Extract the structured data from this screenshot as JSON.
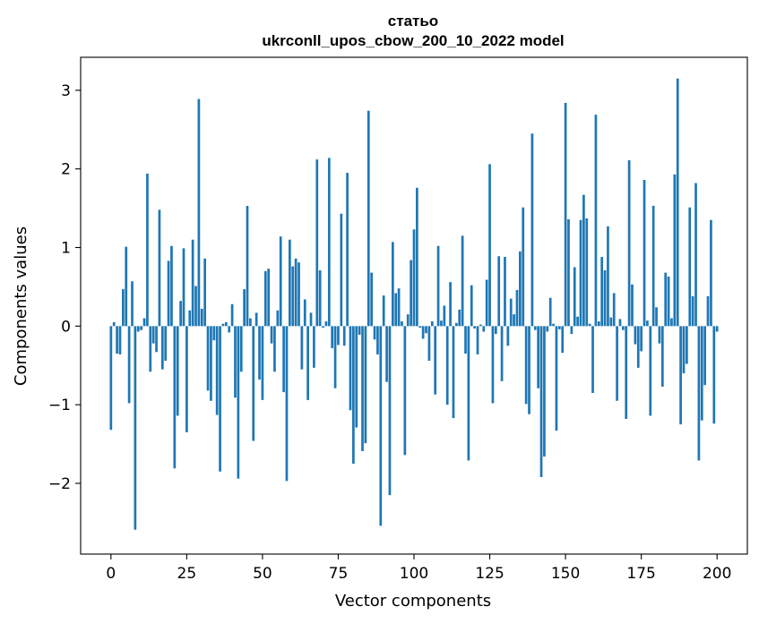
{
  "chart_data": {
    "type": "bar",
    "title": "статьо",
    "subtitle": "ukrconll_upos_cbow_200_10_2022 model",
    "xlabel": "Vector components",
    "ylabel": "Components values",
    "x_ticks": [
      "0",
      "25",
      "50",
      "75",
      "100",
      "125",
      "150",
      "175",
      "200"
    ],
    "y_ticks": [
      "−2",
      "−1",
      "0",
      "1",
      "2",
      "3"
    ],
    "xlim": [
      -10,
      210
    ],
    "ylim": [
      -2.9,
      3.42
    ],
    "grid": false,
    "bar_color": "#1f77b4",
    "values": [
      -1.32,
      0.05,
      -0.35,
      -0.36,
      0.47,
      1.01,
      -0.98,
      0.57,
      -2.59,
      -0.07,
      -0.05,
      0.1,
      1.94,
      -0.58,
      -0.22,
      -0.33,
      1.48,
      -0.55,
      -0.44,
      0.83,
      1.02,
      -1.81,
      -1.14,
      0.32,
      0.99,
      -1.35,
      0.2,
      1.1,
      0.51,
      2.89,
      0.22,
      0.86,
      -0.82,
      -0.95,
      -0.18,
      -1.13,
      -1.85,
      0.03,
      0.05,
      -0.08,
      0.28,
      -0.91,
      -1.94,
      -0.58,
      0.47,
      1.53,
      0.1,
      -1.46,
      0.17,
      -0.68,
      -0.94,
      0.7,
      0.73,
      -0.22,
      -0.58,
      0.2,
      1.14,
      -0.84,
      -1.97,
      1.1,
      0.76,
      0.86,
      0.81,
      -0.55,
      0.34,
      -0.94,
      0.17,
      -0.53,
      2.12,
      0.71,
      -0.02,
      0.06,
      2.14,
      -0.28,
      -0.79,
      -0.24,
      1.43,
      -0.25,
      1.95,
      -1.07,
      -1.75,
      -1.29,
      -0.11,
      -1.59,
      -1.49,
      2.74,
      0.68,
      -0.17,
      -0.36,
      -2.54,
      0.39,
      -0.71,
      -2.15,
      1.07,
      0.42,
      0.48,
      0.06,
      -1.64,
      0.15,
      0.84,
      1.23,
      1.76,
      -0.02,
      -0.16,
      -0.09,
      -0.44,
      0.06,
      -0.87,
      1.02,
      0.07,
      0.26,
      -1.0,
      0.56,
      -1.17,
      0.04,
      0.21,
      1.15,
      -0.35,
      -1.71,
      0.52,
      -0.03,
      -0.36,
      0.02,
      -0.07,
      0.59,
      2.06,
      -0.98,
      -0.1,
      0.89,
      -0.7,
      0.88,
      -0.25,
      0.35,
      0.15,
      0.46,
      0.95,
      1.51,
      -0.99,
      -1.12,
      2.45,
      -0.05,
      -0.79,
      -1.92,
      -1.66,
      -0.07,
      0.36,
      0.03,
      -1.33,
      -0.04,
      -0.34,
      2.84,
      1.36,
      -0.1,
      0.75,
      0.12,
      1.35,
      1.67,
      1.37,
      0.03,
      -0.85,
      2.69,
      0.06,
      0.88,
      0.71,
      1.27,
      0.11,
      0.42,
      -0.95,
      0.09,
      -0.05,
      -1.18,
      2.11,
      0.53,
      -0.23,
      -0.53,
      -0.32,
      1.86,
      0.07,
      -1.14,
      1.53,
      0.24,
      -0.22,
      -0.77,
      0.68,
      0.63,
      0.1,
      1.93,
      3.15,
      -1.25,
      -0.6,
      -0.48,
      1.51,
      0.38,
      1.82,
      -1.71,
      -1.2,
      -0.75,
      0.38,
      1.35,
      -1.24,
      -0.07
    ]
  }
}
